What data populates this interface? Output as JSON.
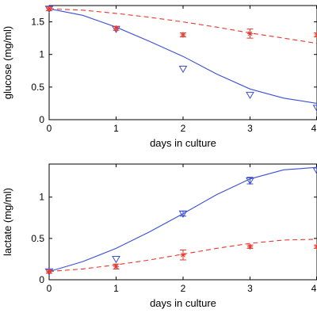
{
  "chart_data": [
    {
      "type": "scatter",
      "title": "",
      "xlabel": "days in culture",
      "ylabel": "glucose (mg/ml)",
      "xlim": [
        0,
        4
      ],
      "ylim": [
        0,
        1.75
      ],
      "xticks": [
        0,
        1,
        2,
        3,
        4
      ],
      "yticks": [
        0,
        0.5,
        1,
        1.5
      ],
      "ytick_labels": [
        "0",
        "0.5",
        "1",
        "1.5"
      ],
      "grid": false,
      "series": [
        {
          "color": "#3b4fd4",
          "marker": "triangle-down",
          "line_style": "solid",
          "points": [
            {
              "x": 0,
              "y": 1.7
            },
            {
              "x": 1,
              "y": 1.39
            },
            {
              "x": 2,
              "y": 0.78
            },
            {
              "x": 3,
              "y": 0.38
            },
            {
              "x": 4,
              "y": 0.18
            }
          ],
          "fit": [
            {
              "x": 0,
              "y": 1.7
            },
            {
              "x": 0.5,
              "y": 1.6
            },
            {
              "x": 1,
              "y": 1.42
            },
            {
              "x": 1.5,
              "y": 1.2
            },
            {
              "x": 2,
              "y": 0.97
            },
            {
              "x": 2.5,
              "y": 0.7
            },
            {
              "x": 3,
              "y": 0.47
            },
            {
              "x": 3.5,
              "y": 0.33
            },
            {
              "x": 4,
              "y": 0.25
            }
          ]
        },
        {
          "color": "#e8362b",
          "marker": "asterisk",
          "line_style": "dashed",
          "points": [
            {
              "x": 0,
              "y": 1.7,
              "err": 0.03
            },
            {
              "x": 1,
              "y": 1.4,
              "err": 0.03
            },
            {
              "x": 2,
              "y": 1.3,
              "err": 0.03
            },
            {
              "x": 3,
              "y": 1.32,
              "err": 0.07
            },
            {
              "x": 4,
              "y": 1.3,
              "err": 0.03
            }
          ],
          "fit": [
            {
              "x": 0,
              "y": 1.7
            },
            {
              "x": 0.5,
              "y": 1.68
            },
            {
              "x": 1,
              "y": 1.63
            },
            {
              "x": 1.5,
              "y": 1.57
            },
            {
              "x": 2,
              "y": 1.5
            },
            {
              "x": 2.5,
              "y": 1.42
            },
            {
              "x": 3,
              "y": 1.33
            },
            {
              "x": 3.5,
              "y": 1.25
            },
            {
              "x": 4,
              "y": 1.17
            }
          ]
        }
      ]
    },
    {
      "type": "scatter",
      "title": "",
      "xlabel": "days in culture",
      "ylabel": "lactate (mg/ml)",
      "xlim": [
        0,
        4
      ],
      "ylim": [
        0,
        1.4
      ],
      "xticks": [
        0,
        1,
        2,
        3,
        4
      ],
      "yticks": [
        0,
        0.5,
        1
      ],
      "ytick_labels": [
        "0",
        "0.5",
        "1"
      ],
      "grid": false,
      "series": [
        {
          "color": "#3b4fd4",
          "marker": "triangle-down",
          "line_style": "solid",
          "points": [
            {
              "x": 0,
              "y": 0.1
            },
            {
              "x": 1,
              "y": 0.25
            },
            {
              "x": 2,
              "y": 0.8,
              "err": 0.03
            },
            {
              "x": 3,
              "y": 1.2,
              "err": 0.04
            },
            {
              "x": 4,
              "y": 1.32
            }
          ],
          "fit": [
            {
              "x": 0,
              "y": 0.1
            },
            {
              "x": 0.5,
              "y": 0.22
            },
            {
              "x": 1,
              "y": 0.38
            },
            {
              "x": 1.5,
              "y": 0.58
            },
            {
              "x": 2,
              "y": 0.8
            },
            {
              "x": 2.5,
              "y": 1.03
            },
            {
              "x": 3,
              "y": 1.22
            },
            {
              "x": 3.5,
              "y": 1.33
            },
            {
              "x": 4,
              "y": 1.36
            }
          ]
        },
        {
          "color": "#e8362b",
          "marker": "asterisk",
          "line_style": "dashed",
          "points": [
            {
              "x": 0,
              "y": 0.1,
              "err": 0.02
            },
            {
              "x": 1,
              "y": 0.16,
              "err": 0.03
            },
            {
              "x": 2,
              "y": 0.3,
              "err": 0.06
            },
            {
              "x": 3,
              "y": 0.4,
              "err": 0.02
            },
            {
              "x": 4,
              "y": 0.4,
              "err": 0.02
            }
          ],
          "fit": [
            {
              "x": 0,
              "y": 0.1
            },
            {
              "x": 0.5,
              "y": 0.13
            },
            {
              "x": 1,
              "y": 0.18
            },
            {
              "x": 1.5,
              "y": 0.24
            },
            {
              "x": 2,
              "y": 0.31
            },
            {
              "x": 2.5,
              "y": 0.38
            },
            {
              "x": 3,
              "y": 0.44
            },
            {
              "x": 3.5,
              "y": 0.48
            },
            {
              "x": 4,
              "y": 0.49
            }
          ]
        }
      ]
    }
  ]
}
